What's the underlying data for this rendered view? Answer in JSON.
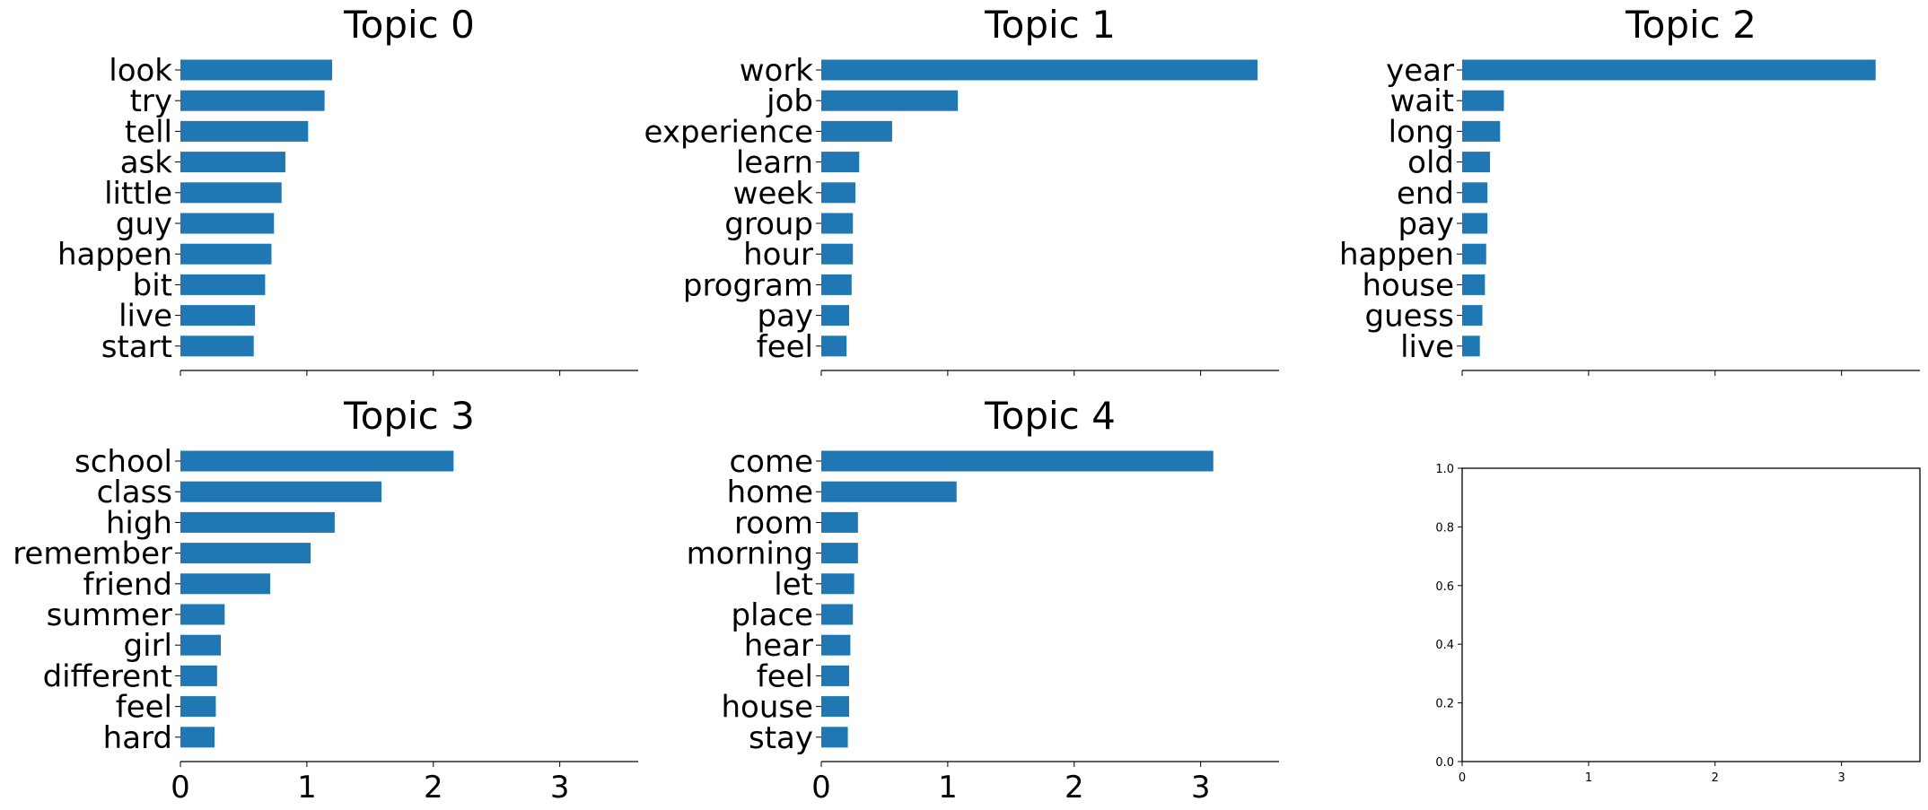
{
  "chart_data": [
    {
      "type": "bar",
      "orientation": "horizontal",
      "title": "Topic 0",
      "categories": [
        "look",
        "try",
        "tell",
        "ask",
        "little",
        "guy",
        "happen",
        "bit",
        "live",
        "start"
      ],
      "values": [
        1.2,
        1.14,
        1.01,
        0.83,
        0.8,
        0.74,
        0.72,
        0.67,
        0.59,
        0.58
      ],
      "xlim": [
        0,
        3.62
      ],
      "xticks": [
        "0",
        "1",
        "2",
        "3"
      ],
      "xtick_labels_shown": false,
      "grid": false
    },
    {
      "type": "bar",
      "orientation": "horizontal",
      "title": "Topic 1",
      "categories": [
        "work",
        "job",
        "experience",
        "learn",
        "week",
        "group",
        "hour",
        "program",
        "pay",
        "feel"
      ],
      "values": [
        3.45,
        1.08,
        0.56,
        0.3,
        0.27,
        0.25,
        0.25,
        0.24,
        0.22,
        0.2
      ],
      "xlim": [
        0,
        3.62
      ],
      "xticks": [
        "0",
        "1",
        "2",
        "3"
      ],
      "xtick_labels_shown": false,
      "grid": false
    },
    {
      "type": "bar",
      "orientation": "horizontal",
      "title": "Topic 2",
      "categories": [
        "year",
        "wait",
        "long",
        "old",
        "end",
        "pay",
        "happen",
        "house",
        "guess",
        "live"
      ],
      "values": [
        3.27,
        0.33,
        0.3,
        0.22,
        0.2,
        0.2,
        0.19,
        0.18,
        0.16,
        0.14
      ],
      "xlim": [
        0,
        3.62
      ],
      "xticks": [
        "0",
        "1",
        "2",
        "3"
      ],
      "xtick_labels_shown": false,
      "grid": false
    },
    {
      "type": "bar",
      "orientation": "horizontal",
      "title": "Topic 3",
      "categories": [
        "school",
        "class",
        "high",
        "remember",
        "friend",
        "summer",
        "girl",
        "different",
        "feel",
        "hard"
      ],
      "values": [
        2.16,
        1.59,
        1.22,
        1.03,
        0.71,
        0.35,
        0.32,
        0.29,
        0.28,
        0.27
      ],
      "xlim": [
        0,
        3.62
      ],
      "xticks": [
        "0",
        "1",
        "2",
        "3"
      ],
      "xtick_labels_shown": true,
      "grid": false
    },
    {
      "type": "bar",
      "orientation": "horizontal",
      "title": "Topic 4",
      "categories": [
        "come",
        "home",
        "room",
        "morning",
        "let",
        "place",
        "hear",
        "feel",
        "house",
        "stay"
      ],
      "values": [
        3.1,
        1.07,
        0.29,
        0.29,
        0.26,
        0.25,
        0.23,
        0.22,
        0.22,
        0.21
      ],
      "xlim": [
        0,
        3.62
      ],
      "xticks": [
        "0",
        "1",
        "2",
        "3"
      ],
      "xtick_labels_shown": true,
      "grid": false
    },
    {
      "type": "bar",
      "title": "",
      "empty": true,
      "categories": [],
      "values": [],
      "xlim": [
        0,
        3.62
      ],
      "ylim": [
        0,
        1
      ],
      "xticks": [
        "0",
        "1",
        "2",
        "3"
      ],
      "yticks": [
        "0.0",
        "0.2",
        "0.4",
        "0.6",
        "0.8",
        "1.0"
      ],
      "full_frame": true,
      "grid": false
    }
  ],
  "colors": {
    "bar": "#1f77b4",
    "axis": "#000000",
    "text": "#000000"
  }
}
